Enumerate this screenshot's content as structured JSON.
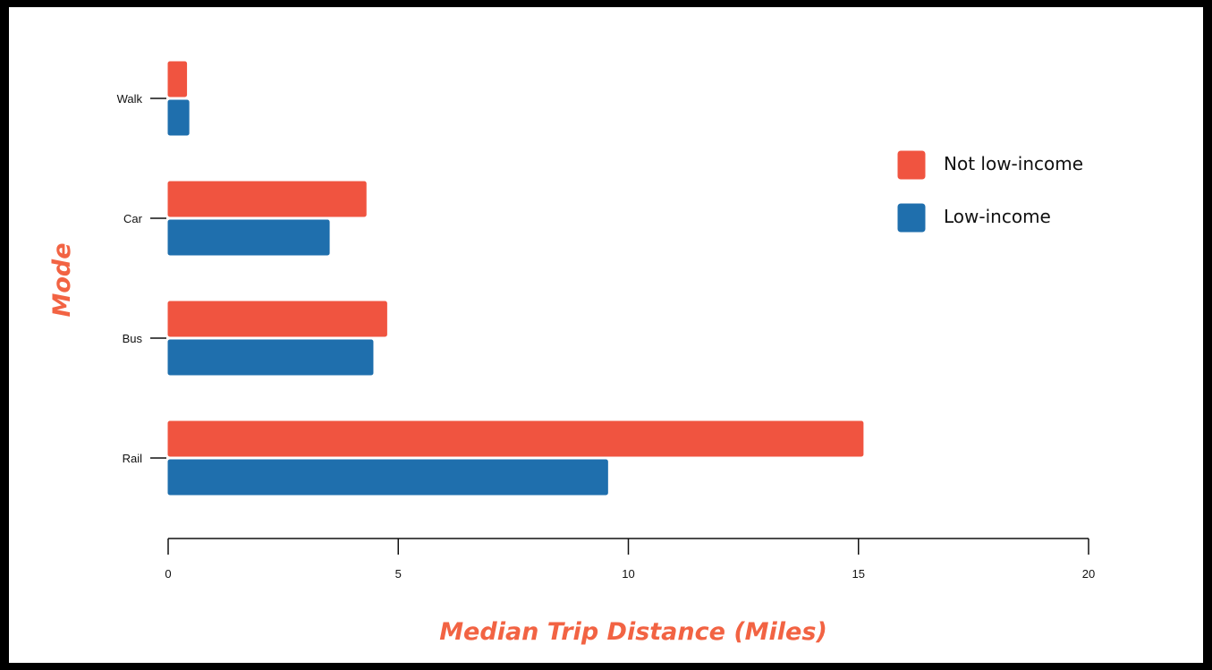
{
  "chart_data": {
    "type": "bar",
    "orientation": "horizontal",
    "categories": [
      "Walk",
      "Car",
      "Bus",
      "Rail"
    ],
    "series": [
      {
        "name": "Not low-income",
        "color": "#f05440",
        "values": [
          0.4,
          4.3,
          4.75,
          15.1
        ]
      },
      {
        "name": "Low-income",
        "color": "#1f6fad",
        "values": [
          0.45,
          3.5,
          4.45,
          9.55
        ]
      }
    ],
    "xlabel": "Median Trip Distance (Miles)",
    "ylabel": "Mode",
    "xlim": [
      0,
      20
    ],
    "xticks": [
      0,
      5,
      10,
      15,
      20
    ],
    "grid": false,
    "legend_position": "top-right",
    "axis_title_color": "#f26343"
  }
}
